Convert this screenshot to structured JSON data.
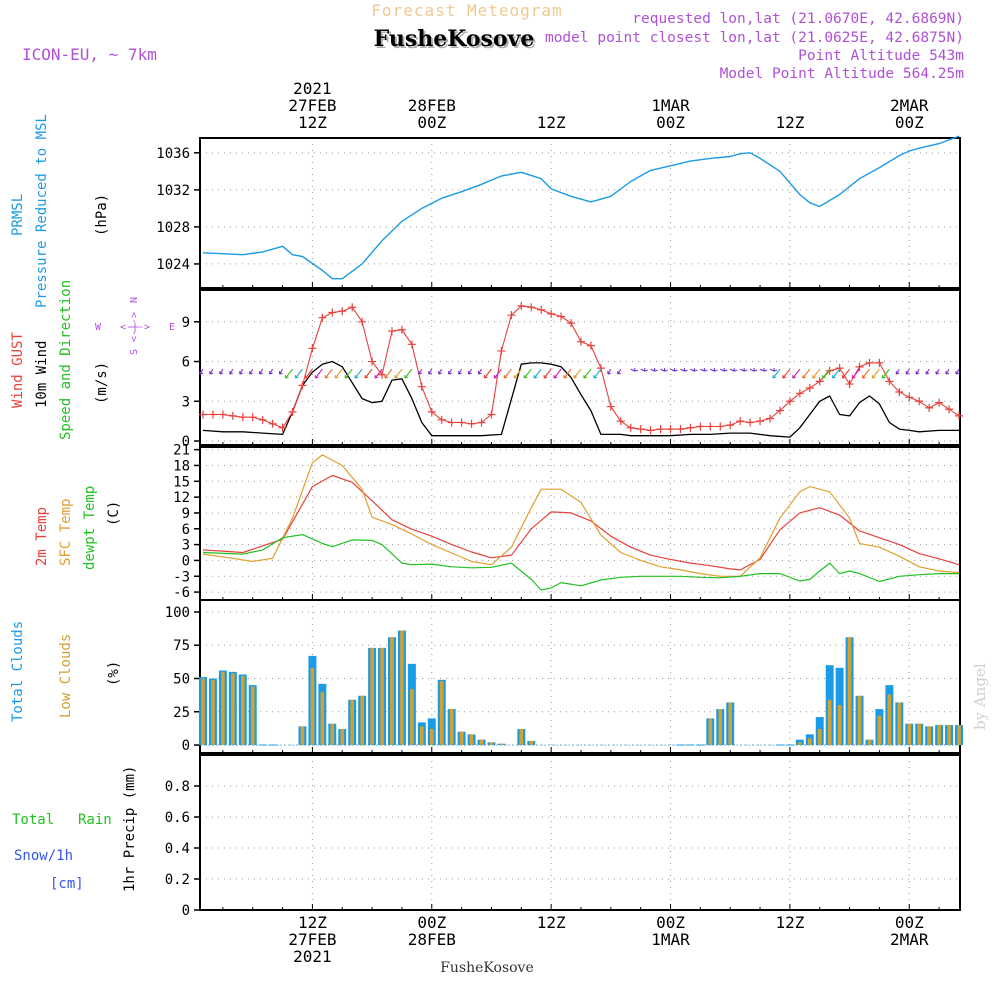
{
  "header": {
    "title_top": "Forecast Meteogram",
    "location": "FusheKosove",
    "model": "ICON-EU, ~ 7km",
    "requested": "requested lon,lat (21.0670E, 42.6869N)",
    "closest": "model point closest lon,lat (21.0625E, 42.6875N)",
    "altitude": "Point Altitude 543m",
    "model_altitude": "Model Point Altitude 564.25m"
  },
  "time_axis": {
    "top_labels": [
      {
        "t": 12,
        "lines": [
          "2021",
          "27FEB",
          "12Z"
        ]
      },
      {
        "t": 24,
        "lines": [
          "28FEB",
          "00Z"
        ]
      },
      {
        "t": 36,
        "lines": [
          "12Z"
        ]
      },
      {
        "t": 48,
        "lines": [
          "1MAR",
          "00Z"
        ]
      },
      {
        "t": 60,
        "lines": [
          "12Z"
        ]
      },
      {
        "t": 72,
        "lines": [
          "2MAR",
          "00Z"
        ]
      }
    ],
    "bottom_labels": [
      {
        "t": 12,
        "lines": [
          "12Z",
          "27FEB",
          "2021"
        ]
      },
      {
        "t": 24,
        "lines": [
          "00Z",
          "28FEB"
        ]
      },
      {
        "t": 36,
        "lines": [
          "12Z"
        ]
      },
      {
        "t": 48,
        "lines": [
          "00Z",
          "1MAR"
        ]
      },
      {
        "t": 60,
        "lines": [
          "12Z"
        ]
      },
      {
        "t": 72,
        "lines": [
          "00Z",
          "2MAR"
        ]
      }
    ],
    "footer_location": "FusheKosove",
    "xlim": [
      0.7,
      77.1
    ]
  },
  "watermark": "by Angel",
  "panels": {
    "pressure": {
      "label1": "PRMSL",
      "label2": "Pressure Reduced to MSL",
      "unit": "(hPa)"
    },
    "wind": {
      "label_gust": "Wind GUST",
      "label_wind": "10m Wind",
      "label_dir": "Speed and Direction",
      "unit": "(m/s)",
      "compass_n": "N",
      "compass_s": "S",
      "compass_w": "W",
      "compass_e": "E",
      "compass_mid": "<-|->"
    },
    "temp": {
      "label_2m": "2m Temp",
      "label_sfc": "SFC Temp",
      "label_dew": "dewpt Temp",
      "unit": "(C)"
    },
    "clouds": {
      "label_total": "Total Clouds",
      "label_low": "Low Clouds",
      "unit": "(%)"
    },
    "precip": {
      "label_total": "Total",
      "label_rain": "Rain",
      "label_snow": "Snow/1h",
      "label_cm": "[cm]",
      "ylabel": "1hr Precip (mm)"
    }
  },
  "colors": {
    "pressure": "#1a9be6",
    "gust": "#e8413c",
    "wind": "#000000",
    "temp2m": "#e8413c",
    "sfc": "#e0a030",
    "dew": "#22c022",
    "total_cloud": "#1a9be6",
    "low_cloud": "#d4a030",
    "rain": "#22c022",
    "snow": "#3355ee",
    "header_purple": "#b050d8",
    "title_orange": "#f0c890"
  },
  "chart_data": [
    {
      "type": "line",
      "title": "PRMSL Pressure Reduced to MSL",
      "ylabel": "(hPa)",
      "ylim": [
        1021.4,
        1037.6
      ],
      "yticks": [
        1024,
        1028,
        1032,
        1036
      ],
      "x": [
        1,
        3,
        5,
        7,
        9,
        10,
        11,
        13,
        14,
        15,
        17,
        19,
        21,
        23,
        25,
        27,
        29,
        31,
        33,
        35,
        36,
        38,
        40,
        42,
        44,
        46,
        48,
        50,
        52,
        54,
        55,
        56,
        57,
        59,
        61,
        62,
        63,
        65,
        67,
        69,
        71,
        72,
        73,
        75,
        77
      ],
      "values": [
        1025.2,
        1025.1,
        1025.0,
        1025.3,
        1025.9,
        1025.0,
        1024.8,
        1023.3,
        1022.4,
        1022.4,
        1024.0,
        1026.5,
        1028.6,
        1030.0,
        1031.1,
        1031.8,
        1032.6,
        1033.5,
        1033.9,
        1033.2,
        1032.1,
        1031.3,
        1030.7,
        1031.3,
        1032.9,
        1034.1,
        1034.6,
        1035.1,
        1035.4,
        1035.6,
        1035.9,
        1036.0,
        1035.4,
        1034.0,
        1031.5,
        1030.6,
        1030.2,
        1031.5,
        1033.2,
        1034.4,
        1035.7,
        1036.2,
        1036.5,
        1037.0,
        1037.8
      ]
    },
    {
      "type": "line",
      "title": "Wind GUST / 10m Wind Speed and Direction",
      "ylabel": "(m/s)",
      "ylim": [
        -0.3,
        11.4
      ],
      "yticks": [
        0,
        3,
        6,
        9
      ],
      "series": [
        {
          "name": "Wind GUST",
          "x": [
            1,
            2,
            3,
            4,
            5,
            6,
            7,
            8,
            9,
            10,
            11,
            12,
            13,
            14,
            15,
            16,
            17,
            18,
            19,
            20,
            21,
            22,
            23,
            24,
            25,
            26,
            27,
            28,
            29,
            30,
            31,
            32,
            33,
            34,
            35,
            36,
            37,
            38,
            39,
            40,
            41,
            42,
            43,
            44,
            45,
            46,
            47,
            48,
            49,
            50,
            51,
            52,
            53,
            54,
            55,
            56,
            57,
            58,
            59,
            60,
            61,
            62,
            63,
            64,
            65,
            66,
            67,
            68,
            69,
            70,
            71,
            72,
            73,
            74,
            75,
            76,
            77
          ],
          "values": [
            2.0,
            2.0,
            2.0,
            1.9,
            1.8,
            1.8,
            1.6,
            1.3,
            1.0,
            2.2,
            4.2,
            7.0,
            9.3,
            9.7,
            9.8,
            10.1,
            9.0,
            6.0,
            5.0,
            8.3,
            8.4,
            7.3,
            4.1,
            2.2,
            1.6,
            1.4,
            1.4,
            1.3,
            1.4,
            2.0,
            6.8,
            9.5,
            10.2,
            10.1,
            9.9,
            9.6,
            9.4,
            8.9,
            7.5,
            7.2,
            5.5,
            2.6,
            1.5,
            1.0,
            0.9,
            0.8,
            0.9,
            0.9,
            0.9,
            1.0,
            1.1,
            1.1,
            1.1,
            1.2,
            1.5,
            1.4,
            1.5,
            1.7,
            2.3,
            3.0,
            3.6,
            4.0,
            4.5,
            5.3,
            5.5,
            4.3,
            5.6,
            5.9,
            5.9,
            4.5,
            3.7,
            3.3,
            3.0,
            2.5,
            2.9,
            2.4,
            1.9
          ]
        },
        {
          "name": "10m Wind",
          "x": [
            1,
            3,
            5,
            7,
            9,
            10,
            11,
            12,
            13,
            14,
            15,
            17,
            18,
            19,
            20,
            21,
            22,
            23,
            24,
            25,
            27,
            29,
            31,
            33,
            34,
            35,
            36,
            37,
            38,
            39,
            40,
            41,
            42,
            43,
            44,
            46,
            48,
            50,
            52,
            54,
            56,
            58,
            60,
            61,
            62,
            63,
            64,
            65,
            66,
            67,
            68,
            69,
            70,
            71,
            72,
            73,
            75,
            77
          ],
          "values": [
            0.8,
            0.7,
            0.7,
            0.6,
            0.5,
            2.2,
            4.2,
            5.2,
            5.8,
            6.0,
            5.6,
            3.2,
            2.9,
            3.0,
            4.6,
            4.7,
            3.2,
            1.4,
            0.4,
            0.4,
            0.4,
            0.4,
            0.5,
            5.8,
            5.9,
            5.9,
            5.8,
            5.6,
            4.8,
            3.5,
            2.3,
            0.5,
            0.5,
            0.5,
            0.4,
            0.4,
            0.4,
            0.5,
            0.5,
            0.6,
            0.6,
            0.4,
            0.3,
            1.0,
            2.0,
            3.0,
            3.4,
            2.0,
            1.9,
            2.9,
            3.4,
            2.8,
            1.4,
            0.9,
            0.8,
            0.7,
            0.8,
            0.8
          ]
        }
      ]
    },
    {
      "type": "line",
      "title": "2m Temp / SFC Temp / dewpt Temp",
      "ylabel": "(C)",
      "ylim": [
        -7.5,
        21.5
      ],
      "yticks": [
        -6,
        -3,
        0,
        3,
        6,
        9,
        12,
        15,
        18,
        21
      ],
      "series": [
        {
          "name": "2m Temp",
          "x": [
            1,
            5,
            9,
            12,
            14,
            16,
            18,
            20,
            22,
            24,
            26,
            28,
            30,
            32,
            34,
            36,
            38,
            40,
            42,
            44,
            46,
            48,
            50,
            52,
            54,
            55,
            57,
            59,
            61,
            63,
            65,
            67,
            69,
            71,
            73,
            75,
            77
          ],
          "values": [
            2.0,
            1.5,
            4.0,
            14.0,
            16.1,
            14.8,
            11.3,
            7.7,
            5.9,
            4.6,
            3.0,
            1.6,
            0.5,
            1.0,
            6.0,
            9.2,
            9.0,
            7.5,
            4.6,
            2.5,
            1.0,
            0.2,
            -0.5,
            -1.0,
            -1.6,
            -1.8,
            0.2,
            5.8,
            9.0,
            10.0,
            8.6,
            5.6,
            4.3,
            3.0,
            1.3,
            0.3,
            -0.8
          ]
        },
        {
          "name": "SFC Temp",
          "x": [
            1,
            4,
            6,
            8,
            10,
            12,
            13,
            15,
            17,
            18,
            20,
            22,
            24,
            26,
            28,
            30,
            32,
            34,
            35,
            37,
            39,
            41,
            43,
            45,
            47,
            49,
            51,
            53,
            55,
            57,
            59,
            61,
            62,
            64,
            66,
            67,
            69,
            71,
            73,
            75,
            77
          ],
          "values": [
            1.2,
            0.4,
            -0.2,
            0.4,
            8.0,
            18.5,
            20.0,
            18.0,
            13.5,
            8.2,
            6.8,
            5.0,
            3.0,
            1.4,
            -0.2,
            -0.8,
            2.5,
            10.0,
            13.5,
            13.5,
            11.0,
            4.8,
            1.5,
            0.0,
            -1.2,
            -1.8,
            -2.5,
            -3.0,
            -3.0,
            0.5,
            8.0,
            13.0,
            14.0,
            13.0,
            8.0,
            3.2,
            2.5,
            0.8,
            -1.2,
            -2.0,
            -2.3
          ]
        },
        {
          "name": "dewpt Temp",
          "x": [
            1,
            5,
            7,
            9,
            11,
            13,
            14,
            16,
            18,
            19,
            21,
            22,
            24,
            26,
            28,
            30,
            32,
            34,
            35,
            36,
            37,
            39,
            41,
            43,
            45,
            47,
            49,
            51,
            53,
            55,
            57,
            59,
            61,
            62,
            63,
            64,
            65,
            66,
            67,
            69,
            71,
            73,
            75,
            77
          ],
          "values": [
            1.5,
            1.2,
            2.0,
            4.3,
            4.9,
            3.2,
            2.6,
            3.9,
            3.8,
            3.0,
            -0.5,
            -0.8,
            -0.7,
            -1.2,
            -1.4,
            -1.3,
            -0.5,
            -3.6,
            -5.6,
            -5.2,
            -4.2,
            -4.8,
            -3.7,
            -3.2,
            -3.0,
            -3.0,
            -3.0,
            -3.2,
            -3.3,
            -3.0,
            -2.5,
            -2.5,
            -3.9,
            -3.6,
            -2.0,
            -0.5,
            -2.5,
            -2.0,
            -2.5,
            -4.0,
            -3.0,
            -2.7,
            -2.5,
            -2.5
          ]
        }
      ]
    },
    {
      "type": "bar",
      "title": "Total Clouds / Low Clouds",
      "ylabel": "(%)",
      "ylim": [
        -6,
        109
      ],
      "yticks": [
        0,
        25,
        50,
        75,
        100
      ],
      "series": [
        {
          "name": "Total Clouds",
          "x": [
            1,
            2,
            3,
            4,
            5,
            6,
            7,
            8,
            11,
            12,
            13,
            14,
            15,
            16,
            17,
            18,
            19,
            20,
            21,
            22,
            23,
            24,
            25,
            26,
            27,
            28,
            29,
            30,
            31,
            33,
            34,
            49,
            50,
            51,
            52,
            53,
            54,
            59,
            60,
            61,
            62,
            63,
            64,
            65,
            66,
            67,
            68,
            69,
            70,
            71,
            72,
            73,
            74,
            75,
            76,
            77
          ],
          "values": [
            51,
            50,
            56,
            55,
            53,
            45,
            0,
            0,
            14,
            67,
            46,
            16,
            12,
            34,
            37,
            73,
            73,
            81,
            86,
            61,
            17,
            20,
            49,
            27,
            10,
            8,
            4,
            2,
            1,
            12,
            3,
            0,
            0,
            0,
            20,
            27,
            32,
            0,
            0,
            4,
            8,
            21,
            60,
            58,
            81,
            37,
            4,
            27,
            45,
            32,
            16,
            16,
            14,
            15,
            15,
            15
          ]
        },
        {
          "name": "Low Clouds",
          "x": [
            1,
            2,
            3,
            4,
            5,
            6,
            7,
            8,
            11,
            12,
            13,
            14,
            15,
            16,
            17,
            18,
            19,
            20,
            21,
            22,
            23,
            24,
            25,
            26,
            27,
            28,
            29,
            30,
            31,
            33,
            34,
            49,
            50,
            51,
            52,
            53,
            54,
            59,
            60,
            61,
            62,
            63,
            64,
            65,
            66,
            67,
            68,
            69,
            70,
            71,
            72,
            73,
            74,
            75,
            76,
            77
          ],
          "values": [
            50,
            49,
            55,
            54,
            52,
            44,
            0,
            0,
            14,
            58,
            40,
            16,
            12,
            34,
            37,
            73,
            73,
            81,
            86,
            42,
            14,
            12,
            48,
            27,
            10,
            8,
            4,
            2,
            1,
            12,
            3,
            0,
            0,
            0,
            20,
            27,
            32,
            0,
            0,
            2,
            5,
            12,
            34,
            30,
            81,
            37,
            4,
            22,
            38,
            32,
            16,
            16,
            14,
            15,
            15,
            15
          ]
        }
      ]
    },
    {
      "type": "bar",
      "title": "1hr Precip",
      "ylabel": "1hr Precip (mm)",
      "ylim": [
        0,
        1.0
      ],
      "yticks": [
        0,
        0.2,
        0.4,
        0.6,
        0.8
      ],
      "series": [
        {
          "name": "Total Rain",
          "x": [],
          "values": []
        },
        {
          "name": "Snow/1h",
          "x": [],
          "values": []
        }
      ]
    }
  ]
}
